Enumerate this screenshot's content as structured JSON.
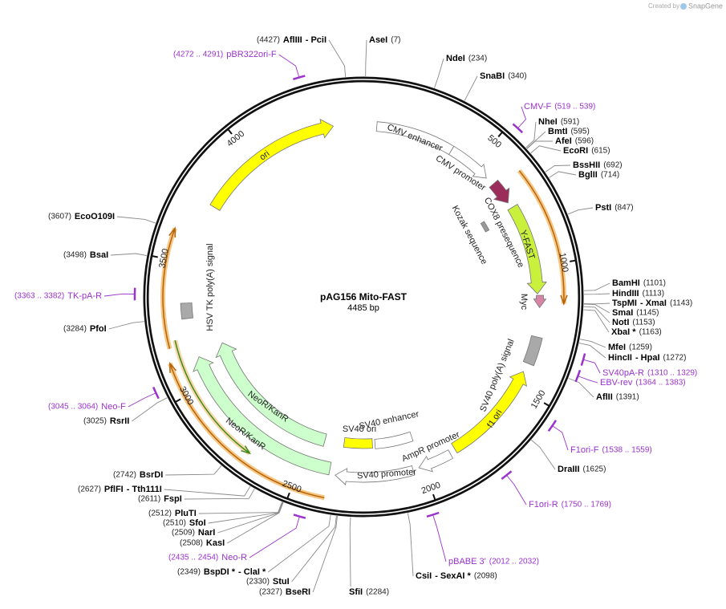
{
  "credit": {
    "created_by": "Created by",
    "brand": "SnapGene"
  },
  "title": "pAG156 Mito-FAST",
  "size": "4485 bp",
  "ticks": [
    "500",
    "1000",
    "1500",
    "2000",
    "2500",
    "3000",
    "3500",
    "4000"
  ],
  "features": [
    {
      "label": "CMV enhancer"
    },
    {
      "label": "CMV promoter"
    },
    {
      "label": "COX8 presequence"
    },
    {
      "label": "Kozak sequence"
    },
    {
      "label": "Y-FAST"
    },
    {
      "label": "Myc"
    },
    {
      "label": "SV40 poly(A) signal"
    },
    {
      "label": "f1 ori"
    },
    {
      "label": "AmpR promoter"
    },
    {
      "label": "SV40 promoter"
    },
    {
      "label": "SV40 enhancer"
    },
    {
      "label": "SV40 ori"
    },
    {
      "label": "NeoR/KanR"
    },
    {
      "label": "NeoR/KanR"
    },
    {
      "label": "HSV TK poly(A) signal"
    },
    {
      "label": "ori"
    }
  ],
  "sites": [
    {
      "position": "(4427)",
      "name": "AflIII",
      "name2": "- PciI"
    },
    {
      "position": "(7)",
      "name": "AseI"
    },
    {
      "position": "(234)",
      "name": "NdeI"
    },
    {
      "position": "(340)",
      "name": "SnaBI"
    },
    {
      "position": "(591)",
      "name": "NheI"
    },
    {
      "position": "(595)",
      "name": "BmtI"
    },
    {
      "position": "(596)",
      "name": "AfeI"
    },
    {
      "position": "(615)",
      "name": "EcoRI"
    },
    {
      "position": "(692)",
      "name": "BssHII"
    },
    {
      "position": "(714)",
      "name": "BglII"
    },
    {
      "position": "(847)",
      "name": "PstI"
    },
    {
      "position": "(1101)",
      "name": "BamHI"
    },
    {
      "position": "(1113)",
      "name": "HindIII"
    },
    {
      "position": "(1143)",
      "name": "TspMI",
      "name2": "- XmaI"
    },
    {
      "position": "(1145)",
      "name": "SmaI"
    },
    {
      "position": "(1153)",
      "name": "NotI"
    },
    {
      "position": "(1163)",
      "name": "XbaI *"
    },
    {
      "position": "(1259)",
      "name": "MfeI"
    },
    {
      "position": "(1272)",
      "name": "HincII",
      "name2": "- HpaI"
    },
    {
      "position": "(1391)",
      "name": "AflII"
    },
    {
      "position": "(1625)",
      "name": "DraIII"
    },
    {
      "position": "(2098)",
      "name": "CsiI",
      "name2": "- SexAI *"
    },
    {
      "position": "(2284)",
      "name": "SfiI"
    },
    {
      "position": "(2327)",
      "name": "BseRI"
    },
    {
      "position": "(2330)",
      "name": "StuI"
    },
    {
      "position": "(2349)",
      "name": "BspDI *",
      "name2": "- ClaI *"
    },
    {
      "position": "(2508)",
      "name": "KasI"
    },
    {
      "position": "(2509)",
      "name": "NarI"
    },
    {
      "position": "(2510)",
      "name": "SfoI"
    },
    {
      "position": "(2512)",
      "name": "PluTI"
    },
    {
      "position": "(2611)",
      "name": "FspI"
    },
    {
      "position": "(2627)",
      "name": "PflFI",
      "name2": "- Tth111I"
    },
    {
      "position": "(2742)",
      "name": "BsrDI"
    },
    {
      "position": "(3025)",
      "name": "RsrII"
    },
    {
      "position": "(3284)",
      "name": "PfoI"
    },
    {
      "position": "(3498)",
      "name": "BsaI"
    },
    {
      "position": "(3607)",
      "name": "EcoO109I"
    }
  ],
  "primers": [
    {
      "range": "(4272 .. 4291)",
      "name": "pBR322ori-F"
    },
    {
      "range": "(519 .. 539)",
      "name": "CMV-F"
    },
    {
      "range": "(1310 .. 1329)",
      "name": "SV40pA-R"
    },
    {
      "range": "(1364 .. 1383)",
      "name": "EBV-rev"
    },
    {
      "range": "(1538 .. 1559)",
      "name": "F1ori-F"
    },
    {
      "range": "(1750 .. 1769)",
      "name": "F1ori-R"
    },
    {
      "range": "(2012 .. 2032)",
      "name": "pBABE 3'"
    },
    {
      "range": "(2435 .. 2454)",
      "name": "Neo-R"
    },
    {
      "range": "(3045 .. 3064)",
      "name": "Neo-F"
    },
    {
      "range": "(3363 .. 3382)",
      "name": "TK-pA-R"
    }
  ]
}
